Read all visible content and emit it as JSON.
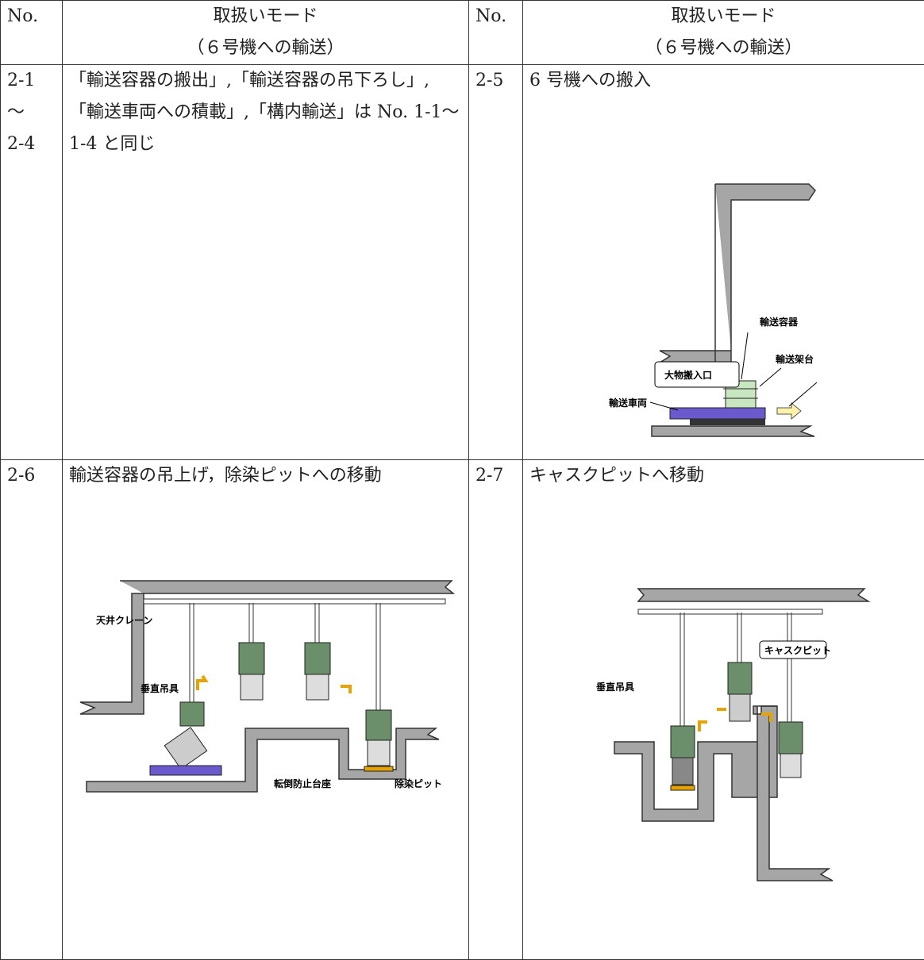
{
  "table": {
    "header": [
      {
        "no": "No.",
        "mode": [
          "取扱いモード",
          "（６号機への輸送）"
        ]
      },
      {
        "no": "No.",
        "mode": [
          "取扱いモード",
          "（６号機への輸送）"
        ]
      }
    ],
    "rows": [
      [
        {
          "no": [
            "2-1",
            "～",
            "2-4"
          ],
          "text": "「輸送容器の搬出」,「輸送容器の吊下ろし」,「輸送車両への積載」,「構内輸送」は No. 1-1～1-4 と同じ"
        },
        {
          "no": [
            "2-5"
          ],
          "text": "6 号機への搬入",
          "figure_labels": [
            "輸送容器",
            "輸送架台",
            "大物搬入口",
            "輸送車両"
          ]
        }
      ],
      [
        {
          "no": [
            "2-6"
          ],
          "text": "輸送容器の吊上げ，除染ピットへの移動",
          "figure_labels": [
            "天井クレーン",
            "垂直吊具",
            "転倒防止台座",
            "除染ピット"
          ]
        },
        {
          "no": [
            "2-7"
          ],
          "text": "キャスクピットへ移動",
          "figure_labels": [
            "キャスクピット",
            "垂直吊具"
          ]
        }
      ]
    ]
  }
}
